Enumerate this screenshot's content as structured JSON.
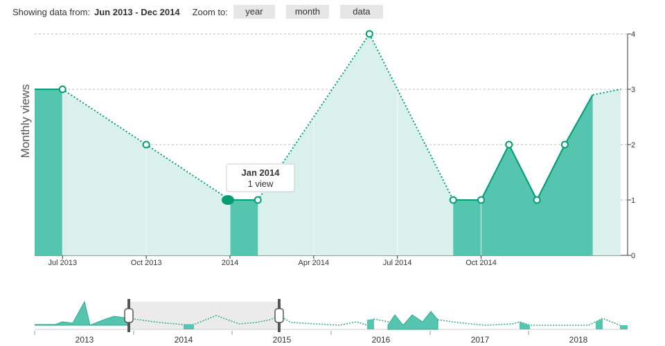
{
  "header": {
    "showing_label": "Showing data from:",
    "range": "Jun 2013 - Dec 2014",
    "zoom_label": "Zoom to:",
    "buttons": [
      "year",
      "month",
      "data"
    ]
  },
  "tooltip": {
    "title": "Jan 2014",
    "value": "1 view"
  },
  "colors": {
    "accent": "#009e73",
    "fill_dark": "#56c5b0",
    "fill_light": "#d9f0ec",
    "grid": "#bbbbbb",
    "navigator_mask": "#eeeeee"
  },
  "chart_data": {
    "type": "area",
    "ylabel": "Monthly views",
    "ylim": [
      0,
      4
    ],
    "y_ticks": [
      "0",
      "1",
      "2",
      "3",
      "4"
    ],
    "x_tick_labels": [
      "Jul 2013",
      "Oct 2013",
      "2014",
      "Apr 2014",
      "Jul 2014",
      "Oct 2014"
    ],
    "x": [
      "2013-06",
      "2013-07",
      "2013-10",
      "2014-01",
      "2014-02",
      "2014-06",
      "2014-09",
      "2014-10",
      "2014-11",
      "2014-12",
      "2015-01",
      "2015-02",
      "2015-03"
    ],
    "values": [
      3,
      3,
      2,
      1,
      1,
      4,
      1,
      1,
      2,
      1,
      2,
      2.9,
      3
    ],
    "grid": true,
    "highlighted_point": {
      "x": "2014-01",
      "y": 1
    },
    "navigator": {
      "x_tick_labels": [
        "2013",
        "2014",
        "2015",
        "2016",
        "2017",
        "2018"
      ],
      "selected_range": [
        "Jun 2013",
        "Dec 2014"
      ]
    }
  }
}
